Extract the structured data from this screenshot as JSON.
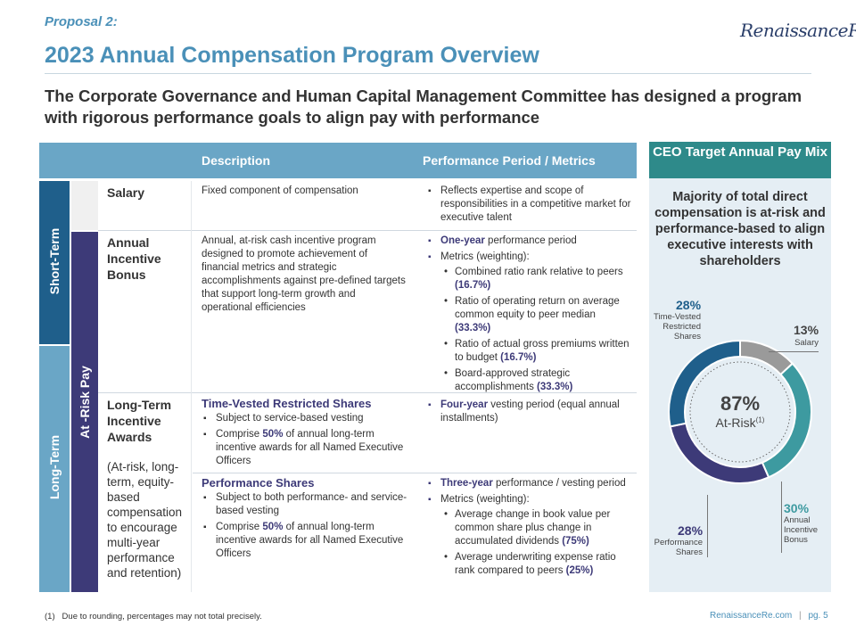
{
  "header": {
    "proposal": "Proposal 2:",
    "title": "2023 Annual Compensation Program Overview",
    "logo": "RenaissanceRe",
    "subtitle": "The Corporate Governance and Human Capital Management Committee has designed a program with rigorous performance goals to align pay with performance"
  },
  "table": {
    "col_description": "Description",
    "col_performance": "Performance Period / Metrics",
    "side_short_term": "Short-Term",
    "side_long_term": "Long-Term",
    "side_at_risk": "At -Risk Pay",
    "salary": {
      "name": "Salary",
      "description": "Fixed component of compensation",
      "metric": "Reflects expertise and scope of responsibilities in a competitive market for executive talent"
    },
    "bonus": {
      "name": "Annual Incentive Bonus",
      "description": "Annual, at-risk cash incentive program designed to promote achievement of financial metrics and strategic accomplishments against pre-defined targets that support long-term growth and operational efficiencies",
      "period_strong": "One-year",
      "period_rest": " performance period",
      "metrics_label": "Metrics (weighting):",
      "metrics": [
        {
          "text": "Combined ratio rank relative to peers ",
          "weight": "(16.7%)"
        },
        {
          "text": "Ratio of operating return on average common equity to peer median ",
          "weight": "(33.3%)"
        },
        {
          "text": "Ratio of actual gross premiums written to budget ",
          "weight": "(16.7%)"
        },
        {
          "text": "Board-approved strategic accomplishments ",
          "weight": "(33.3%)"
        }
      ]
    },
    "ltia": {
      "name": "Long-Term Incentive Awards",
      "note": "(At-risk, long-term, equity-based compensation to encourage multi-year performance and retention)",
      "rs_title": "Time-Vested Restricted Shares",
      "rs_bullet1": "Subject to service-based vesting",
      "rs_bullet2_pre": "Comprise ",
      "rs_bullet2_pct": "50%",
      "rs_bullet2_post": " of annual long-term incentive awards for all Named Executive Officers",
      "rs_period_strong": "Four-year",
      "rs_period_rest": " vesting period (equal annual installments)",
      "ps_title": "Performance Shares",
      "ps_bullet1": "Subject to both performance- and service-based vesting",
      "ps_bullet2_pre": "Comprise ",
      "ps_bullet2_pct": "50%",
      "ps_bullet2_post": " of annual long-term incentive awards for all Named Executive Officers",
      "ps_period_strong": "Three-year",
      "ps_period_rest": " performance / vesting period",
      "ps_metrics_label": "Metrics (weighting):",
      "ps_metrics": [
        {
          "text": "Average change in book value per common share plus change in accumulated dividends ",
          "weight": "(75%)"
        },
        {
          "text": "Average underwriting expense ratio rank compared to peers ",
          "weight": "(25%)"
        }
      ]
    }
  },
  "panel": {
    "heading": "CEO Target Annual Pay Mix",
    "text": "Majority of total direct compensation is at-risk and performance-based to align executive interests with shareholders",
    "center_pct": "87%",
    "center_label": "At-Risk",
    "center_sup": "(1)",
    "slices": [
      {
        "name": "Salary",
        "pct": "13%",
        "value": 13,
        "color": "#9a9a9a"
      },
      {
        "name": "Annual Incentive Bonus",
        "pct": "30%",
        "value": 30,
        "color": "#3d9aa0"
      },
      {
        "name": "Performance Shares",
        "pct": "28%",
        "value": 28,
        "color": "#3d3a78"
      },
      {
        "name": "Time-Vested Restricted Shares",
        "pct": "28%",
        "value": 28,
        "color": "#1f5f8b"
      }
    ],
    "label_salary": "Salary",
    "label_bonus": "Annual Incentive Bonus",
    "label_ps": "Performance Shares",
    "label_rs": "Time-Vested Restricted Shares"
  },
  "footer": {
    "footnote_num": "(1)",
    "footnote": "Due to rounding, percentages may not total precisely.",
    "site": "RenaissanceRe.com",
    "sep": "|",
    "page": "pg. 5"
  },
  "colors": {
    "accent": "#4a90b8",
    "navy": "#1f5f8b",
    "purple": "#3d3a78",
    "teal": "#2e8a8a"
  }
}
